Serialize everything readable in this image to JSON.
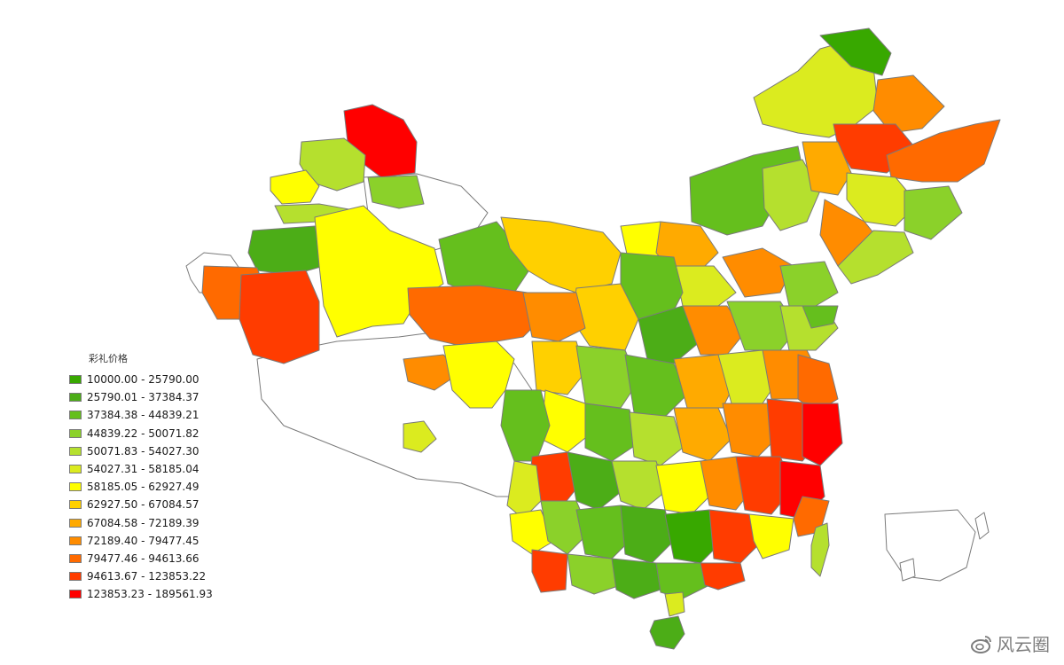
{
  "legend": {
    "title": "彩礼价格",
    "classes": [
      {
        "label": "10000.00 - 25790.00",
        "color": "#38a800"
      },
      {
        "label": "25790.01 - 37384.37",
        "color": "#4cad17"
      },
      {
        "label": "37384.38 - 44839.21",
        "color": "#65bf1d"
      },
      {
        "label": "44839.22 - 50071.82",
        "color": "#8bd12a"
      },
      {
        "label": "50071.83 - 54027.30",
        "color": "#b5e02e"
      },
      {
        "label": "54027.31 - 58185.04",
        "color": "#dbeb1f"
      },
      {
        "label": "58185.05 - 62927.49",
        "color": "#ffff00"
      },
      {
        "label": "62927.50 - 67084.57",
        "color": "#ffd000"
      },
      {
        "label": "67084.58 - 72189.39",
        "color": "#ffaa00"
      },
      {
        "label": "72189.40 - 79477.45",
        "color": "#ff8c00"
      },
      {
        "label": "79477.46 - 94613.66",
        "color": "#ff6a00"
      },
      {
        "label": "94613.67 - 123853.22",
        "color": "#ff3c00"
      },
      {
        "label": "123853.23 - 189561.93",
        "color": "#ff0000"
      }
    ]
  },
  "watermark": {
    "text": "风云圈",
    "icon": "weibo-icon"
  },
  "colors": {
    "border": "#7a7a7a",
    "nodata": "#ffffff"
  }
}
